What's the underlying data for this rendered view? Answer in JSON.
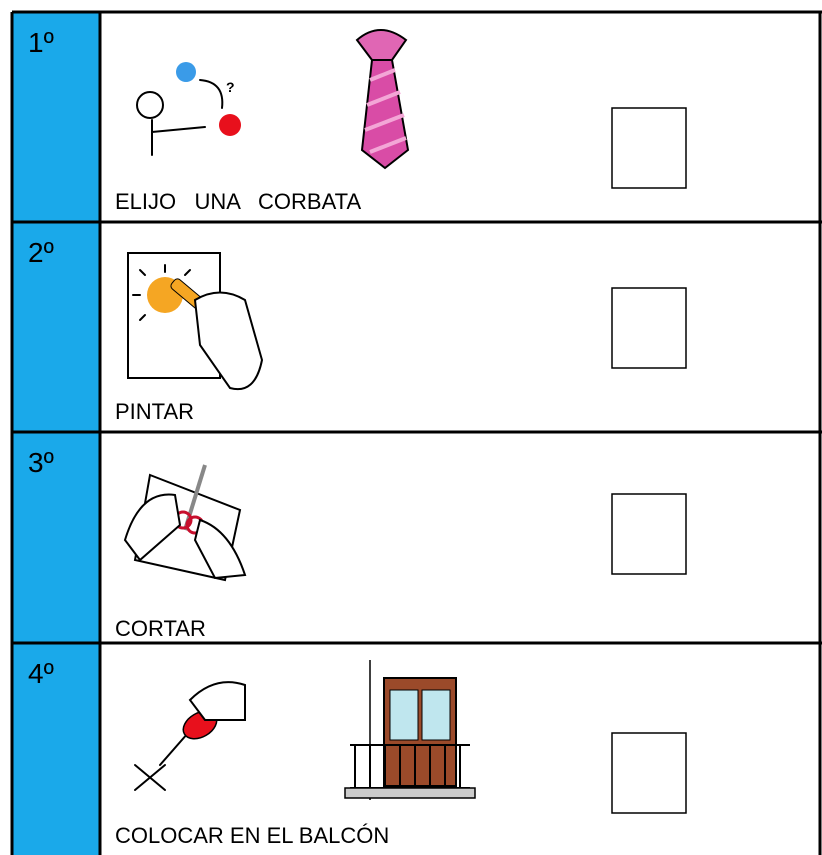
{
  "rows": [
    {
      "number": "1º",
      "caption": "ELIJO   UNA   CORBATA"
    },
    {
      "number": "2º",
      "caption": "PINTAR"
    },
    {
      "number": "3º",
      "caption": "CORTAR"
    },
    {
      "number": "4º",
      "caption": "COLOCAR EN EL BALCÓN"
    }
  ]
}
